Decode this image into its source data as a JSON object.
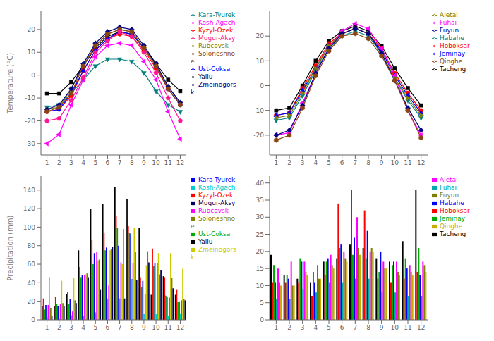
{
  "chart_data": [
    {
      "type": "line",
      "ylabel": "Temperature (°C)",
      "grid": false,
      "legend": "right",
      "x": [
        1,
        2,
        3,
        4,
        5,
        6,
        7,
        8,
        9,
        10,
        11,
        12
      ],
      "xlim": [
        0.5,
        12.5
      ],
      "xticks": [
        1,
        2,
        3,
        4,
        5,
        6,
        7,
        8,
        9,
        10,
        11,
        12
      ],
      "ylim": [
        -35,
        28
      ],
      "yticks": [
        -30,
        -20,
        -10,
        0,
        10,
        20
      ],
      "series": [
        {
          "name": "Yailu",
          "color": "#000000",
          "marker": "square",
          "values": [
            -8,
            -8,
            -3,
            4,
            12,
            17,
            19,
            18,
            12,
            5,
            -2,
            -7
          ]
        },
        {
          "name": "Kyzyl-Ozek",
          "color": "#ff0000",
          "marker": "circle",
          "values": [
            -16,
            -15,
            -9,
            2,
            11,
            16,
            18,
            17,
            11,
            3,
            -6,
            -13
          ]
        },
        {
          "name": "Ust-Coksa",
          "color": "#0000ff",
          "marker": "triangle-up",
          "values": [
            -16,
            -15,
            -8,
            2,
            11,
            16,
            19,
            18,
            12,
            4,
            -6,
            -13
          ]
        },
        {
          "name": "Kara-Tyurek",
          "color": "#008080",
          "marker": "triangle-down",
          "values": [
            -14,
            -13,
            -8,
            -2,
            4,
            7,
            7,
            6,
            1,
            -7,
            -13,
            -16
          ]
        },
        {
          "name": "Kosh-Agach",
          "color": "#ff00ff",
          "marker": "triangle-left",
          "values": [
            -30,
            -26,
            -13,
            -2,
            8,
            13,
            14,
            13,
            6,
            -2,
            -16,
            -28
          ]
        },
        {
          "name": "Rubcovsk",
          "color": "#808000",
          "marker": "triangle-right",
          "values": [
            -15,
            -14,
            -6,
            4,
            13,
            18,
            20,
            19,
            12,
            4,
            -5,
            -12
          ]
        },
        {
          "name": "Zmeinogorsk",
          "color": "#000080",
          "marker": "diamond",
          "values": [
            -15,
            -13,
            -6,
            5,
            14,
            19,
            21,
            20,
            13,
            5,
            -5,
            -12
          ]
        },
        {
          "name": "Soloneshnoe",
          "color": "#8B4513",
          "marker": "hexagon",
          "values": [
            -16,
            -14,
            -8,
            4,
            13,
            18,
            20,
            19,
            12,
            4,
            -6,
            -13
          ]
        },
        {
          "name": "Mugur-Aksy",
          "color": "#ff1493",
          "marker": "pentagon",
          "values": [
            -20,
            -19,
            -11,
            -1,
            10,
            15,
            19,
            17,
            10,
            1,
            -10,
            -20
          ]
        }
      ]
    },
    {
      "type": "line",
      "grid": false,
      "legend": "right",
      "x": [
        1,
        2,
        3,
        4,
        5,
        6,
        7,
        8,
        9,
        10,
        11,
        12
      ],
      "xlim": [
        0.5,
        12.5
      ],
      "xticks": [
        1,
        2,
        3,
        4,
        5,
        6,
        7,
        8,
        9,
        10,
        11,
        12
      ],
      "ylim": [
        -28,
        30
      ],
      "yticks": [
        -20,
        -10,
        0,
        10,
        20
      ],
      "series": [
        {
          "name": "Tacheng",
          "color": "#000000",
          "marker": "square",
          "values": [
            -10,
            -9,
            0,
            10,
            18,
            22,
            24,
            22,
            16,
            7,
            -1,
            -8
          ]
        },
        {
          "name": "Hoboksar",
          "color": "#ff0000",
          "marker": "circle",
          "values": [
            -12,
            -11,
            -1,
            8,
            17,
            21,
            23,
            21,
            15,
            5,
            -3,
            -10
          ]
        },
        {
          "name": "Jeminay",
          "color": "#0000ff",
          "marker": "triangle-up",
          "values": [
            -12,
            -11,
            -2,
            7,
            16,
            21,
            23,
            21,
            14,
            4,
            -4,
            -11
          ]
        },
        {
          "name": "Habahe",
          "color": "#008080",
          "marker": "triangle-down",
          "values": [
            -14,
            -13,
            -4,
            6,
            15,
            20,
            22,
            20,
            13,
            3,
            -6,
            -13
          ]
        },
        {
          "name": "Fuhai",
          "color": "#ff00ff",
          "marker": "triangle-left",
          "values": [
            -20,
            -19,
            -7,
            5,
            15,
            22,
            25,
            23,
            15,
            4,
            -10,
            -20
          ]
        },
        {
          "name": "Aletai",
          "color": "#808000",
          "marker": "triangle-right",
          "values": [
            -13,
            -12,
            -3,
            7,
            16,
            21,
            23,
            21,
            13,
            3,
            -5,
            -12
          ]
        },
        {
          "name": "Fuyun",
          "color": "#000080",
          "marker": "diamond",
          "values": [
            -20,
            -18,
            -8,
            5,
            15,
            21,
            23,
            21,
            13,
            2,
            -9,
            -18
          ]
        },
        {
          "name": "Qinghe",
          "color": "#8B4513",
          "marker": "hexagon",
          "values": [
            -22,
            -20,
            -9,
            4,
            14,
            20,
            21,
            19,
            12,
            2,
            -10,
            -21
          ]
        }
      ]
    },
    {
      "type": "bar",
      "ylabel": "Precipitation (mm)",
      "grid": false,
      "legend": "right",
      "x": [
        1,
        2,
        3,
        4,
        5,
        6,
        7,
        8,
        9,
        10,
        11,
        12
      ],
      "xlim": [
        0.5,
        12.5
      ],
      "xticks": [
        1,
        2,
        3,
        4,
        5,
        6,
        7,
        8,
        9,
        10,
        11,
        12
      ],
      "ylim": [
        0,
        155
      ],
      "yticks": [
        0,
        20,
        40,
        60,
        80,
        100,
        120,
        140
      ],
      "series": [
        {
          "name": "Yailu",
          "color": "#000000",
          "values": [
            15,
            15,
            28,
            75,
            120,
            125,
            143,
            130,
            99,
            27,
            47,
            27
          ]
        },
        {
          "name": "Kyzyl-Ozek",
          "color": "#ff0000",
          "values": [
            23,
            25,
            30,
            57,
            86,
            94,
            112,
            101,
            46,
            77,
            46,
            33
          ]
        },
        {
          "name": "Ust-Coksa",
          "color": "#00aa00",
          "values": [
            11,
            17,
            17,
            46,
            60,
            75,
            99,
            94,
            35,
            58,
            26,
            19
          ]
        },
        {
          "name": "Kara-Tyurek",
          "color": "#0000ff",
          "values": [
            16,
            15,
            22,
            48,
            72,
            78,
            80,
            93,
            42,
            61,
            25,
            20
          ]
        },
        {
          "name": "Kosh-Agach",
          "color": "#00cccc",
          "values": [
            3,
            1,
            5,
            4,
            8,
            22,
            23,
            44,
            6,
            6,
            4,
            7
          ]
        },
        {
          "name": "Rubcovsk",
          "color": "#ff00ff",
          "values": [
            16,
            17,
            9,
            48,
            73,
            37,
            62,
            61,
            28,
            61,
            24,
            21
          ]
        },
        {
          "name": "Zmeinogorsk",
          "color": "#cccc00",
          "values": [
            46,
            42,
            45,
            49,
            64,
            75,
            60,
            99,
            59,
            72,
            72,
            55
          ]
        },
        {
          "name": "Soloneshnoe",
          "color": "#808000",
          "values": [
            13,
            18,
            21,
            50,
            65,
            76,
            98,
            73,
            74,
            49,
            45,
            22
          ]
        },
        {
          "name": "Mugur-Aksy",
          "color": "#000060",
          "values": [
            4,
            15,
            18,
            46,
            33,
            79,
            23,
            43,
            62,
            54,
            34,
            21
          ]
        }
      ]
    },
    {
      "type": "bar",
      "grid": false,
      "legend": "right",
      "x": [
        1,
        2,
        3,
        4,
        5,
        6,
        7,
        8,
        9,
        10,
        11,
        12
      ],
      "xlim": [
        0.5,
        12.5
      ],
      "xticks": [
        1,
        2,
        3,
        4,
        5,
        6,
        7,
        8,
        9,
        10,
        11,
        12
      ],
      "ylim": [
        0,
        42
      ],
      "yticks": [
        0,
        5,
        10,
        15,
        20,
        25,
        30,
        35,
        40
      ],
      "series": [
        {
          "name": "Tacheng",
          "color": "#000000",
          "values": [
            19,
            13,
            12,
            11,
            17,
            18,
            22,
            21,
            18,
            17,
            23,
            38
          ]
        },
        {
          "name": "Hoboksar",
          "color": "#ff0000",
          "values": [
            11,
            11,
            11,
            7,
            13,
            34,
            38,
            32,
            12,
            11,
            12,
            14
          ]
        },
        {
          "name": "Jeminay",
          "color": "#00aa00",
          "values": [
            16,
            13,
            18,
            14,
            17,
            21,
            19,
            18,
            14,
            16,
            18,
            21
          ]
        },
        {
          "name": "Habahe",
          "color": "#0000ff",
          "values": [
            11,
            12,
            17,
            11,
            18,
            22,
            24,
            26,
            20,
            17,
            15,
            13
          ]
        },
        {
          "name": "Fuhai",
          "color": "#00aaaa",
          "values": [
            6,
            6,
            9,
            8,
            11,
            11,
            12,
            12,
            8,
            8,
            7,
            7
          ]
        },
        {
          "name": "Aletai",
          "color": "#ff00ff",
          "values": [
            15,
            17,
            17,
            16,
            19,
            20,
            30,
            20,
            17,
            17,
            16,
            17
          ]
        },
        {
          "name": "Fuyun",
          "color": "#808000",
          "values": [
            11,
            10,
            14,
            12,
            16,
            18,
            21,
            21,
            15,
            14,
            14,
            16
          ]
        },
        {
          "name": "Qinghe",
          "color": "#ccaa00",
          "values": [
            10,
            10,
            13,
            12,
            15,
            17,
            19,
            20,
            15,
            13,
            13,
            14
          ]
        }
      ]
    }
  ]
}
